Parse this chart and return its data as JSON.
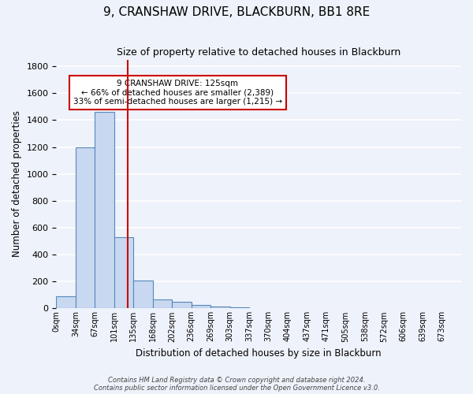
{
  "title": "9, CRANSHAW DRIVE, BLACKBURN, BB1 8RE",
  "subtitle": "Size of property relative to detached houses in Blackburn",
  "xlabel": "Distribution of detached houses by size in Blackburn",
  "ylabel": "Number of detached properties",
  "bar_labels": [
    "0sqm",
    "34sqm",
    "67sqm",
    "101sqm",
    "135sqm",
    "168sqm",
    "202sqm",
    "236sqm",
    "269sqm",
    "303sqm",
    "337sqm",
    "370sqm",
    "404sqm",
    "437sqm",
    "471sqm",
    "505sqm",
    "538sqm",
    "572sqm",
    "606sqm",
    "639sqm",
    "673sqm"
  ],
  "bar_heights": [
    90,
    1200,
    1460,
    530,
    205,
    68,
    48,
    28,
    15,
    8,
    0,
    0,
    0,
    0,
    0,
    0,
    0,
    0,
    0,
    0,
    0
  ],
  "bar_color": "#c8d8f0",
  "bar_edge_color": "#5588bb",
  "property_line_color": "#cc0000",
  "annotation_title": "9 CRANSHAW DRIVE: 125sqm",
  "annotation_line1": "← 66% of detached houses are smaller (2,389)",
  "annotation_line2": "33% of semi-detached houses are larger (1,215) →",
  "annotation_box_color": "#ffffff",
  "annotation_box_edge": "#cc0000",
  "ylim": [
    0,
    1850
  ],
  "yticks": [
    0,
    200,
    400,
    600,
    800,
    1000,
    1200,
    1400,
    1600,
    1800
  ],
  "footer1": "Contains HM Land Registry data © Crown copyright and database right 2024.",
  "footer2": "Contains public sector information licensed under the Open Government Licence v3.0.",
  "bg_color": "#eef2fa",
  "plot_bg_color": "#eef2fa",
  "grid_color": "#ffffff"
}
